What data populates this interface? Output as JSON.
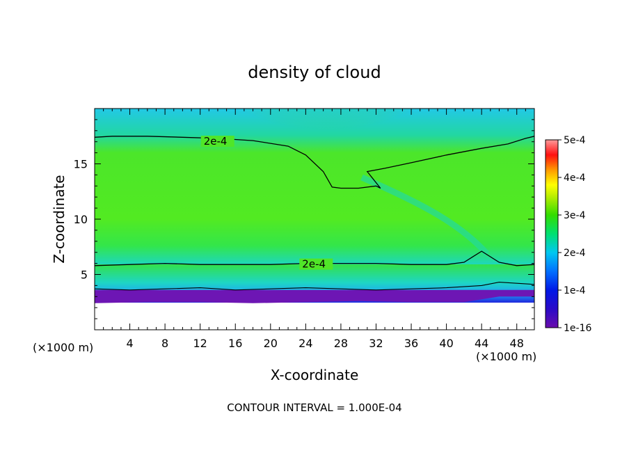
{
  "chart_data": {
    "type": "heatmap",
    "title": "density of cloud",
    "xlabel": "X-coordinate",
    "ylabel": "Z-coordinate",
    "x_unit": "(×1000 m)",
    "y_unit": "(×1000 m)",
    "xlim": [
      0,
      50
    ],
    "ylim": [
      0,
      20
    ],
    "x_ticks": [
      4,
      8,
      12,
      16,
      20,
      24,
      28,
      32,
      36,
      40,
      44,
      48
    ],
    "x_tick_labels": [
      "4",
      "8",
      "12",
      "16",
      "20",
      "24",
      "28",
      "32",
      "36",
      "40",
      "44",
      "48"
    ],
    "y_ticks": [
      5,
      10,
      15
    ],
    "y_tick_labels": [
      "5",
      "10",
      "15"
    ],
    "colorbar": {
      "ticks": [
        1e-16,
        0.0001,
        0.0002,
        0.0003,
        0.0004,
        0.0005
      ],
      "tick_labels": [
        "1e-16",
        "1e-4",
        "2e-4",
        "3e-4",
        "4e-4",
        "5e-4"
      ],
      "colors": [
        "#6a0dad",
        "#0000cd",
        "#00bfff",
        "#33dd00",
        "#ffff00",
        "#ff0000",
        "#ff9999"
      ]
    },
    "contours": [
      {
        "level": 0.0002,
        "label": "2e-4",
        "upper_x": [
          0,
          2,
          6,
          10,
          14,
          18,
          22,
          24,
          26,
          27,
          28,
          30,
          32,
          32.5,
          31,
          33,
          36,
          40,
          44,
          47,
          49,
          50
        ],
        "upper_y": [
          17.4,
          17.5,
          17.5,
          17.4,
          17.3,
          17.1,
          16.6,
          15.8,
          14.3,
          12.9,
          12.8,
          12.8,
          13.0,
          12.8,
          14.3,
          14.6,
          15.1,
          15.8,
          16.4,
          16.8,
          17.3,
          17.5
        ],
        "lower_x": [
          0,
          4,
          8,
          12,
          16,
          20,
          24,
          28,
          32,
          36,
          40,
          42,
          43,
          44,
          46,
          48,
          50
        ],
        "lower_y": [
          5.8,
          5.9,
          6.0,
          5.9,
          5.9,
          5.9,
          6.0,
          6.0,
          6.0,
          5.9,
          5.9,
          6.1,
          6.6,
          7.1,
          6.1,
          5.8,
          5.9
        ]
      },
      {
        "level": 0.0001,
        "x": [
          0,
          4,
          8,
          12,
          16,
          20,
          24,
          28,
          32,
          36,
          40,
          44,
          46,
          48,
          50
        ],
        "y": [
          3.7,
          3.6,
          3.7,
          3.8,
          3.6,
          3.7,
          3.8,
          3.7,
          3.6,
          3.7,
          3.8,
          4.0,
          4.3,
          4.2,
          4.1
        ]
      }
    ],
    "cloud_base_x": [
      0,
      6,
      12,
      18,
      24,
      30,
      36,
      42,
      46,
      50
    ],
    "cloud_base_y": [
      2.4,
      2.5,
      2.5,
      2.4,
      2.5,
      2.6,
      2.5,
      2.5,
      3.0,
      3.0
    ],
    "grid": false,
    "footer": "CONTOUR INTERVAL = 1.000E-04"
  }
}
